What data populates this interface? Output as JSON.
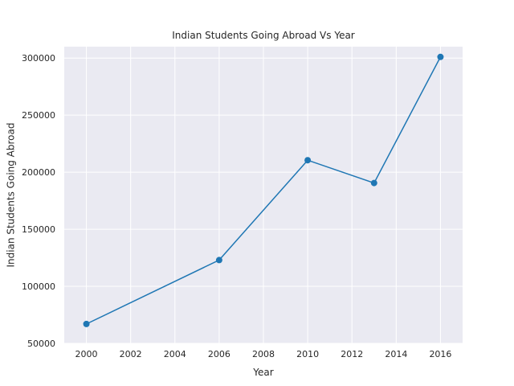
{
  "chart_data": {
    "type": "line",
    "title": "Indian Students Going Abroad Vs Year",
    "xlabel": "Year",
    "ylabel": "Indian Students Going Abroad",
    "x": [
      2000,
      2006,
      2010,
      2013,
      2016
    ],
    "series": [
      {
        "values": [
          67000,
          123000,
          210500,
          190500,
          301000
        ]
      }
    ],
    "xlim": [
      1999,
      2017
    ],
    "ylim": [
      50000,
      310000
    ],
    "xticks": [
      2000,
      2002,
      2004,
      2006,
      2008,
      2010,
      2012,
      2014,
      2016
    ],
    "yticks": [
      50000,
      100000,
      150000,
      200000,
      250000,
      300000
    ],
    "grid": true,
    "legend": "none",
    "colors": {
      "line": "#1f77b4",
      "plot_background": "#eaeaf2",
      "grid": "#ffffff"
    }
  }
}
